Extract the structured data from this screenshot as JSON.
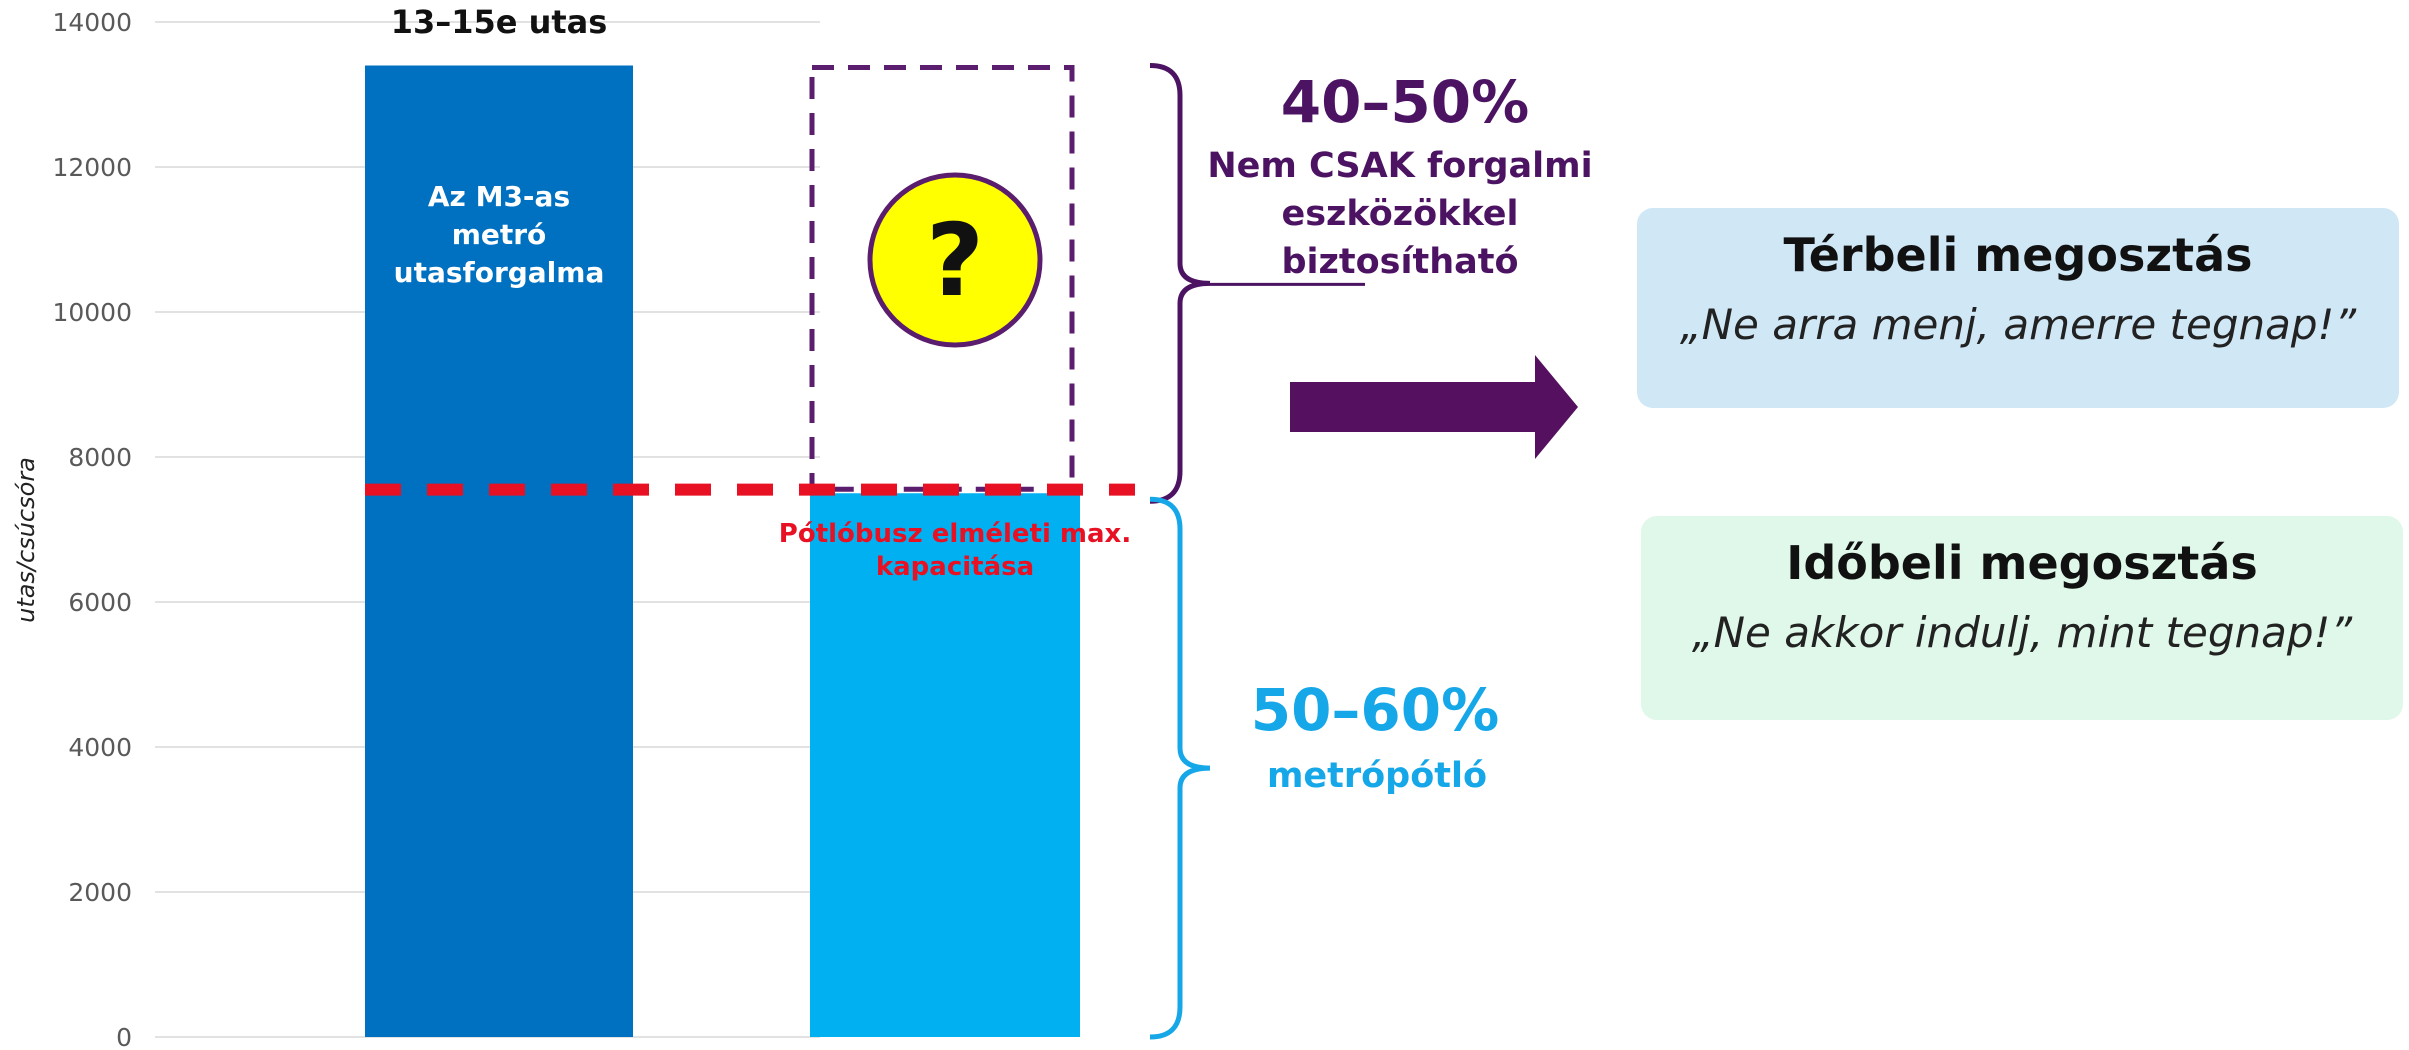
{
  "chart_data": {
    "type": "bar",
    "ylabel": "utas/csúcsóra",
    "ylim": [
      0,
      14000
    ],
    "yticks": [
      0,
      2000,
      4000,
      6000,
      8000,
      10000,
      12000,
      14000
    ],
    "grid": true,
    "bars": [
      {
        "id": "metro",
        "value": 13400,
        "label": "Az M3-as metró utasforgalma",
        "top_label": "13–15e utas",
        "color": "#0070c0"
      },
      {
        "id": "potlo",
        "value": 7500,
        "color": "#00b0f0"
      }
    ],
    "gap_segment": {
      "from": 7500,
      "to": 13400,
      "color": "#5b1e6e"
    },
    "capacity_line": {
      "value": 7550,
      "label": "Pótlóbusz elméleti max. kapacitása",
      "color": "#e81123"
    },
    "upper_annotation": {
      "percent": "40–50%",
      "text": [
        "Nem CSAK forgalmi",
        "eszközökkel",
        "biztosítható"
      ],
      "color": "#4b1362"
    },
    "lower_annotation": {
      "percent": "50–60%",
      "text": [
        "metrópótló"
      ],
      "color": "#16a7e8"
    },
    "question_mark": "?"
  },
  "panels": {
    "spatial": {
      "title": "Térbeli megosztás",
      "quote": "„Ne arra menj, amerre tegnap!”",
      "color": "#d0e7f6"
    },
    "temporal": {
      "title": "Időbeli megosztás",
      "quote": "„Ne akkor indulj, mint tegnap!”",
      "color": "#dff8ea"
    }
  },
  "colors": {
    "arrow": "#561060",
    "axis_text": "#595959",
    "grid": "#d9d9d9"
  }
}
